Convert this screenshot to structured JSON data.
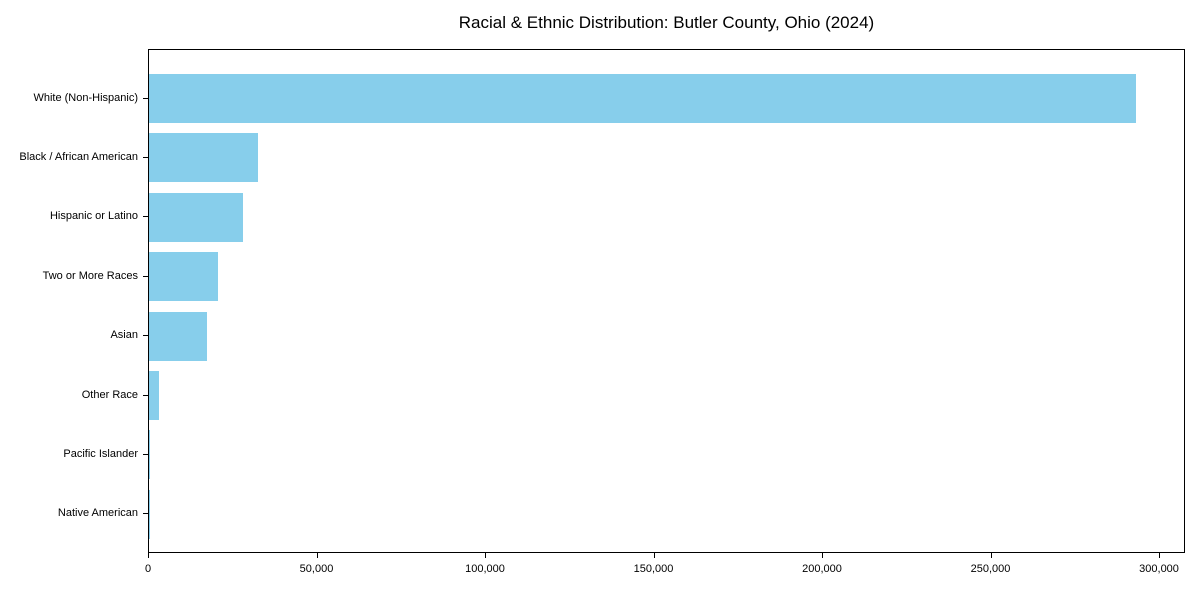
{
  "chart_data": {
    "type": "bar",
    "orientation": "horizontal",
    "title": "Racial & Ethnic Distribution: Butler County, Ohio (2024)",
    "categories": [
      "White (Non-Hispanic)",
      "Black / African American",
      "Hispanic or Latino",
      "Two or More Races",
      "Asian",
      "Other Race",
      "Pacific Islander",
      "Native American"
    ],
    "values": [
      293000,
      32300,
      27900,
      20500,
      17200,
      3000,
      350,
      120
    ],
    "bar_color": "#87CEEB",
    "axis_color": "#000000",
    "text_color": "#000000",
    "background_color": "#FFFFFF",
    "xlabel": "",
    "ylabel": "",
    "xlim": [
      0,
      307700
    ],
    "x_ticks": [
      {
        "value": 0,
        "label": "0"
      },
      {
        "value": 50000,
        "label": "50,000"
      },
      {
        "value": 100000,
        "label": "100,000"
      },
      {
        "value": 150000,
        "label": "150,000"
      },
      {
        "value": 200000,
        "label": "200,000"
      },
      {
        "value": 250000,
        "label": "250,000"
      },
      {
        "value": 300000,
        "label": "300,000"
      }
    ],
    "grid": false,
    "legend": false
  }
}
